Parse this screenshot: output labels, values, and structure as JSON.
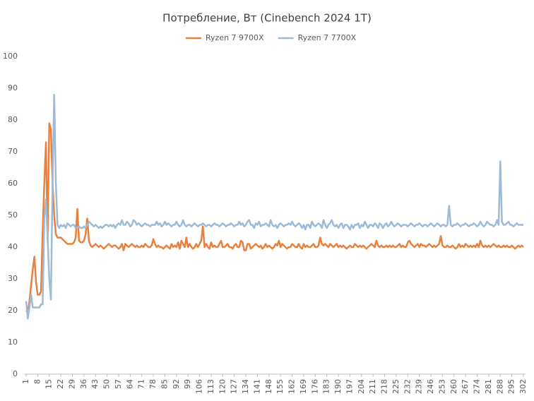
{
  "chart_data": {
    "type": "line",
    "title": "Потребление, Вт (Cinebench 2024 1T)",
    "x": [
      1,
      2,
      3,
      4,
      5,
      6,
      7,
      8,
      9,
      10,
      11,
      12,
      13,
      14,
      15,
      16,
      17,
      18,
      19,
      20,
      21,
      22,
      23,
      24,
      25,
      26,
      27,
      28,
      29,
      30,
      31,
      32,
      33,
      34,
      35,
      36,
      37,
      38,
      39,
      40,
      41,
      42,
      43,
      44,
      45,
      46,
      47,
      48,
      49,
      50,
      51,
      52,
      53,
      54,
      55,
      56,
      57,
      58,
      59,
      60,
      61,
      62,
      63,
      64,
      65,
      66,
      67,
      68,
      69,
      70,
      71,
      72,
      73,
      74,
      75,
      76,
      77,
      78,
      79,
      80,
      81,
      82,
      83,
      84,
      85,
      86,
      87,
      88,
      89,
      90,
      91,
      92,
      93,
      94,
      95,
      96,
      97,
      98,
      99,
      100,
      101,
      102,
      103,
      104,
      105,
      106,
      107,
      108,
      109,
      110,
      111,
      112,
      113,
      114,
      115,
      116,
      117,
      118,
      119,
      120,
      121,
      122,
      123,
      124,
      125,
      126,
      127,
      128,
      129,
      130,
      131,
      132,
      133,
      134,
      135,
      136,
      137,
      138,
      139,
      140,
      141,
      142,
      143,
      144,
      145,
      146,
      147,
      148,
      149,
      150,
      151,
      152,
      153,
      154,
      155,
      156,
      157,
      158,
      159,
      160,
      161,
      162,
      163,
      164,
      165,
      166,
      167,
      168,
      169,
      170,
      171,
      172,
      173,
      174,
      175,
      176,
      177,
      178,
      179,
      180,
      181,
      182,
      183,
      184,
      185,
      186,
      187,
      188,
      189,
      190,
      191,
      192,
      193,
      194,
      195,
      196,
      197,
      198,
      199,
      200,
      201,
      202,
      203,
      204,
      205,
      206,
      207,
      208,
      209,
      210,
      211,
      212,
      213,
      214,
      215,
      216,
      217,
      218,
      219,
      220,
      221,
      222,
      223,
      224,
      225,
      226,
      227,
      228,
      229,
      230,
      231,
      232,
      233,
      234,
      235,
      236,
      237,
      238,
      239,
      240,
      241,
      242,
      243,
      244,
      245,
      246,
      247,
      248,
      249,
      250,
      251,
      252,
      253,
      254,
      255,
      256,
      257,
      258,
      259,
      260,
      261,
      262,
      263,
      264,
      265,
      266,
      267,
      268,
      269,
      270,
      271,
      272,
      273,
      274,
      275,
      276,
      277,
      278,
      279,
      280,
      281,
      282,
      283,
      284,
      285,
      286,
      287,
      288,
      289,
      290,
      291,
      292,
      293,
      294,
      295,
      296,
      297,
      298,
      299,
      300,
      301,
      302
    ],
    "series": [
      {
        "name": "Ryzen 7 9700X",
        "color": "#e8803f",
        "values": [
          20,
          19.5,
          23,
          28,
          33,
          37,
          29,
          25,
          25,
          26,
          45,
          60,
          73,
          42,
          79,
          77,
          60,
          50,
          44,
          43,
          43,
          43,
          42.5,
          42,
          41.5,
          41,
          41,
          41,
          41,
          41.5,
          43,
          52,
          42,
          41.5,
          41.5,
          42,
          44,
          49,
          42,
          40.5,
          40,
          40.5,
          41,
          40.5,
          40,
          40.5,
          40,
          39.5,
          40,
          40.5,
          41,
          40.5,
          40,
          40.5,
          40.5,
          40,
          39.5,
          40,
          41,
          39,
          41,
          40.5,
          40,
          40.5,
          41,
          40.5,
          40,
          40.5,
          40,
          40,
          40.5,
          40,
          41,
          40.5,
          40,
          40,
          40.5,
          42.5,
          41,
          40,
          40.5,
          40,
          40,
          39.5,
          40,
          40.5,
          40,
          39.5,
          41,
          40,
          40.5,
          40,
          41.5,
          39.5,
          42,
          41,
          40,
          43,
          40,
          41,
          40,
          39.5,
          40,
          41,
          40,
          41,
          42,
          46.5,
          40,
          41,
          40,
          39.5,
          41.5,
          40,
          40.5,
          40,
          40,
          41,
          42,
          40,
          40,
          40.5,
          41,
          40,
          40,
          39.5,
          40.5,
          41,
          40,
          40,
          42,
          41.5,
          39,
          39,
          41,
          41,
          39.5,
          40,
          40.5,
          41,
          40.5,
          40,
          40.5,
          39.5,
          40,
          41,
          40,
          40.5,
          40,
          39.5,
          40,
          41,
          40.5,
          42,
          40,
          41,
          40.5,
          40,
          39.5,
          40,
          40,
          41,
          40.5,
          40,
          40,
          41,
          40,
          39.5,
          41,
          40,
          40.5,
          40,
          40,
          40.5,
          41,
          40,
          40,
          40.5,
          43,
          41,
          40.5,
          41,
          40.5,
          40,
          41,
          40.5,
          40,
          40.5,
          41,
          40,
          40.5,
          40,
          40.5,
          40,
          39.5,
          40,
          40.5,
          40,
          40,
          41,
          40.5,
          40,
          40.5,
          40,
          40.5,
          40,
          39.5,
          40,
          40.5,
          41,
          40.5,
          40,
          42,
          40.5,
          40,
          40.5,
          40,
          40,
          40.5,
          40,
          40.5,
          40,
          40.5,
          40,
          40,
          40.5,
          41,
          40,
          40.5,
          40,
          40,
          41.5,
          42,
          41,
          40.5,
          40,
          40.5,
          41,
          40,
          41,
          40.5,
          40.5,
          40,
          40.5,
          41,
          40.5,
          40,
          40.5,
          40,
          40.5,
          41,
          43.5,
          40.5,
          40,
          40,
          40.5,
          40,
          40,
          40.5,
          40,
          39.5,
          40,
          41,
          40,
          40.5,
          40,
          41,
          40.5,
          40,
          40.5,
          40,
          40.5,
          40,
          41,
          40,
          42,
          40.5,
          40,
          40.5,
          40,
          40.5,
          40,
          40.5,
          41,
          40.5,
          40,
          40.5,
          40,
          40,
          40.5,
          40,
          40.5,
          40,
          40,
          40.5,
          40,
          39.5,
          40,
          40.5,
          40,
          40.5,
          40
        ]
      },
      {
        "name": "Ryzen 7 7700X",
        "color": "#9dbad6",
        "values": [
          23,
          17.5,
          21,
          25,
          21,
          21,
          21,
          21,
          21,
          22,
          22,
          49,
          55,
          43,
          30,
          23.5,
          60,
          88,
          60,
          47,
          46,
          47,
          46.5,
          47,
          46,
          47.5,
          47,
          46.5,
          47,
          47,
          46,
          46,
          46.5,
          46,
          46,
          46.5,
          46,
          47,
          48,
          47.5,
          47,
          46.5,
          47,
          46.5,
          46,
          46.5,
          46,
          46.5,
          47,
          47,
          46.5,
          47,
          46.5,
          47,
          46,
          47,
          47.5,
          47,
          48.5,
          47,
          47,
          48,
          47.5,
          46.5,
          47,
          48.5,
          48,
          47,
          47.5,
          47,
          46.5,
          47,
          47.5,
          47,
          47,
          46.5,
          47,
          47,
          47,
          48,
          47,
          47.5,
          46.5,
          47,
          48,
          47,
          47.5,
          47,
          46.5,
          47,
          47,
          48,
          47,
          46.5,
          47,
          48.5,
          47,
          46.5,
          47,
          47,
          46.5,
          47,
          47.5,
          47,
          46.5,
          47,
          47,
          47.5,
          47,
          46.5,
          47,
          47,
          46.5,
          47,
          47.5,
          47,
          47,
          46.5,
          47,
          47.5,
          47,
          46.5,
          47,
          47,
          47.5,
          47,
          46.5,
          47,
          47,
          48,
          47,
          47.5,
          46.5,
          47,
          48,
          48.5,
          47,
          47,
          46,
          47.5,
          47,
          48,
          46.5,
          47,
          47,
          47.5,
          47,
          46.5,
          48.5,
          47,
          46.5,
          47,
          46,
          47,
          47.5,
          47,
          46.5,
          47,
          47,
          47.5,
          47,
          48,
          47,
          46.5,
          47,
          47.5,
          47,
          46,
          47,
          45.5,
          47,
          47,
          46,
          48,
          47,
          46.5,
          47,
          47.5,
          47,
          46,
          48.5,
          47,
          46,
          47,
          47.5,
          48.5,
          47,
          46.5,
          47,
          46,
          47,
          47.5,
          46,
          47,
          47,
          46.5,
          45.5,
          47,
          46,
          47,
          47,
          47.5,
          46,
          47,
          46.5,
          48,
          47,
          46,
          47,
          47,
          46.5,
          47.5,
          47,
          46,
          47.5,
          47,
          46,
          47,
          47.5,
          46.5,
          47,
          48,
          47,
          46.5,
          47,
          47.5,
          47,
          46.5,
          47,
          47,
          47,
          46.5,
          47,
          47.5,
          47,
          46.5,
          47,
          47,
          47.5,
          47,
          46.5,
          47,
          47,
          46.5,
          47,
          47.5,
          47,
          46.5,
          47,
          47.5,
          47,
          46.5,
          47,
          47,
          46.5,
          47,
          53,
          47,
          46.5,
          47,
          47,
          47.5,
          47,
          46.5,
          47,
          47,
          47.5,
          47,
          46.5,
          47,
          47,
          47.5,
          47,
          46.5,
          47,
          48,
          47,
          46.5,
          47,
          48,
          47.5,
          47,
          47,
          46.5,
          47,
          48.5,
          47,
          67,
          48,
          47,
          47,
          47.5,
          48,
          47,
          47,
          46.5,
          47,
          47.5,
          47,
          47,
          47,
          47
        ]
      }
    ],
    "xlim": [
      1,
      302
    ],
    "xticks": [
      1,
      8,
      15,
      22,
      29,
      36,
      43,
      50,
      57,
      64,
      71,
      78,
      85,
      92,
      99,
      106,
      113,
      120,
      127,
      134,
      141,
      148,
      155,
      162,
      169,
      176,
      183,
      190,
      197,
      204,
      211,
      218,
      225,
      232,
      239,
      246,
      253,
      260,
      267,
      274,
      281,
      288,
      295,
      302
    ],
    "ylim": [
      0,
      100
    ],
    "yticks": [
      0,
      10,
      20,
      30,
      40,
      50,
      60,
      70,
      80,
      90,
      100
    ],
    "grid": false,
    "legend": "top"
  }
}
